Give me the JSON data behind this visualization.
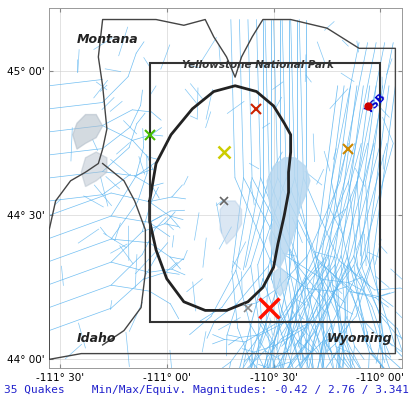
{
  "bottom_text": "35 Quakes    Min/Max/Equiv. Magnitudes: -0.42 / 2.76 / 3.341",
  "xlim": [
    -111.55,
    -109.9
  ],
  "ylim": [
    43.97,
    45.22
  ],
  "xticks": [
    -111.5,
    -111.0,
    -110.5,
    -110.0
  ],
  "yticks": [
    44.0,
    44.5,
    45.0
  ],
  "xlabel_labels": [
    "-111° 30'",
    "-111° 00'",
    "-110° 30'",
    "-110° 00'"
  ],
  "ylabel_labels": [
    "44° 00'",
    "44° 30'",
    "45° 00'"
  ],
  "bg_color": "#ffffff",
  "ax_bg_color": "#ffffff",
  "rivers_color": "#5ab4f0",
  "state_boundary_color": "#444444",
  "park_boundary_color": "#222222",
  "lake_color": "#b8d8f0",
  "gray_color": "#b0bcc8",
  "box_color": "#333333",
  "bottom_text_color": "#2222cc"
}
